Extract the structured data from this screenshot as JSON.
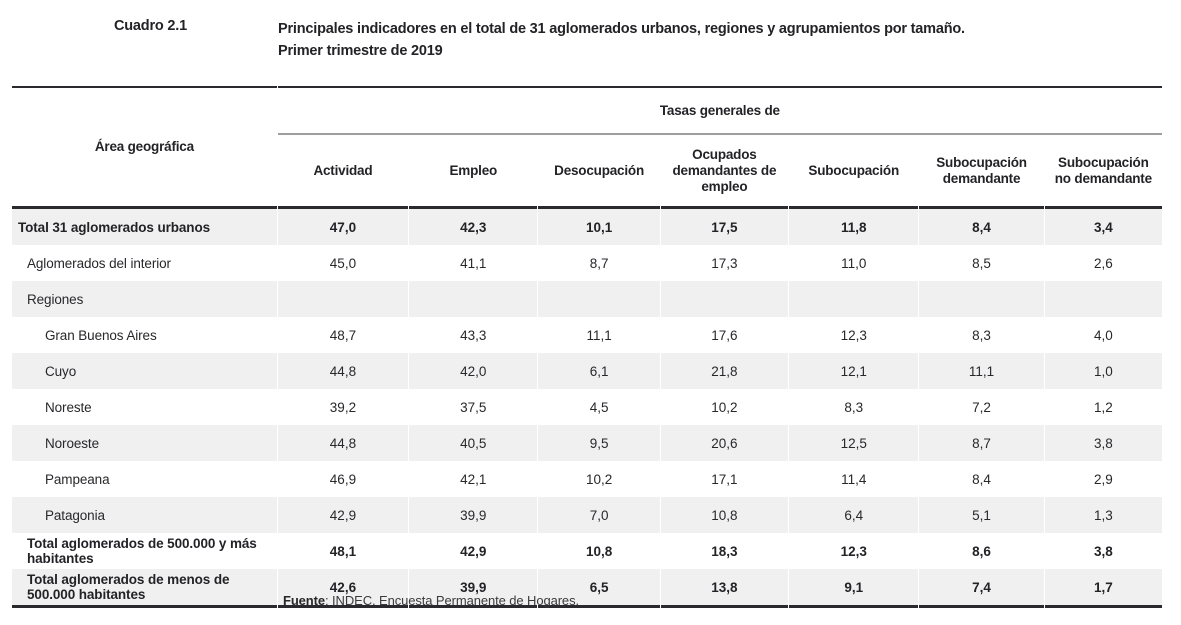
{
  "page": {
    "cuadro_label": "Cuadro 2.1",
    "title_line1": "Principales indicadores en el total de 31 aglomerados urbanos, regiones y agrupamientos por tamaño.",
    "title_line2": "Primer trimestre de 2019",
    "source_label": "Fuente",
    "source_text": ": INDEC. Encuesta Permanente de Hogares."
  },
  "colors": {
    "ink": "#28282c",
    "rule_black": "#2a2a2e",
    "rule_gray": "#9e9e9e",
    "row_shade": "#f0f0f0"
  },
  "table": {
    "area_header": "Área geográfica",
    "group_header": "Tasas generales de",
    "columns": [
      "Actividad",
      "Empleo",
      "Desocupación",
      "Ocupados demandantes de empleo",
      "Subocupación",
      "Subocupación demandante",
      "Subocupación no demandante"
    ],
    "rows": [
      {
        "label": "Total 31 aglomerados urbanos",
        "indent": 0,
        "bold": true,
        "shaded": true,
        "values": [
          "47,0",
          "42,3",
          "10,1",
          "17,5",
          "11,8",
          "8,4",
          "3,4"
        ]
      },
      {
        "label": "Aglomerados del interior",
        "indent": 1,
        "bold": false,
        "shaded": false,
        "values": [
          "45,0",
          "41,1",
          "8,7",
          "17,3",
          "11,0",
          "8,5",
          "2,6"
        ]
      },
      {
        "label": "Regiones",
        "indent": 1,
        "bold": false,
        "shaded": true,
        "values": [
          "",
          "",
          "",
          "",
          "",
          "",
          ""
        ]
      },
      {
        "label": "Gran Buenos Aires",
        "indent": 2,
        "bold": false,
        "shaded": false,
        "values": [
          "48,7",
          "43,3",
          "11,1",
          "17,6",
          "12,3",
          "8,3",
          "4,0"
        ]
      },
      {
        "label": "Cuyo",
        "indent": 2,
        "bold": false,
        "shaded": true,
        "values": [
          "44,8",
          "42,0",
          "6,1",
          "21,8",
          "12,1",
          "11,1",
          "1,0"
        ]
      },
      {
        "label": "Noreste",
        "indent": 2,
        "bold": false,
        "shaded": false,
        "values": [
          "39,2",
          "37,5",
          "4,5",
          "10,2",
          "8,3",
          "7,2",
          "1,2"
        ]
      },
      {
        "label": "Noroeste",
        "indent": 2,
        "bold": false,
        "shaded": true,
        "values": [
          "44,8",
          "40,5",
          "9,5",
          "20,6",
          "12,5",
          "8,7",
          "3,8"
        ]
      },
      {
        "label": "Pampeana",
        "indent": 2,
        "bold": false,
        "shaded": false,
        "values": [
          "46,9",
          "42,1",
          "10,2",
          "17,1",
          "11,4",
          "8,4",
          "2,9"
        ]
      },
      {
        "label": "Patagonia",
        "indent": 2,
        "bold": false,
        "shaded": true,
        "values": [
          "42,9",
          "39,9",
          "7,0",
          "10,8",
          "6,4",
          "5,1",
          "1,3"
        ]
      },
      {
        "label": "Total aglomerados de 500.000 y más habitantes",
        "indent": 1,
        "bold": true,
        "shaded": false,
        "values": [
          "48,1",
          "42,9",
          "10,8",
          "18,3",
          "12,3",
          "8,6",
          "3,8"
        ]
      },
      {
        "label": "Total aglomerados de menos de 500.000 habitantes",
        "indent": 1,
        "bold": true,
        "shaded": true,
        "values": [
          "42,6",
          "39,9",
          "6,5",
          "13,8",
          "9,1",
          "7,4",
          "1,7"
        ]
      }
    ]
  }
}
